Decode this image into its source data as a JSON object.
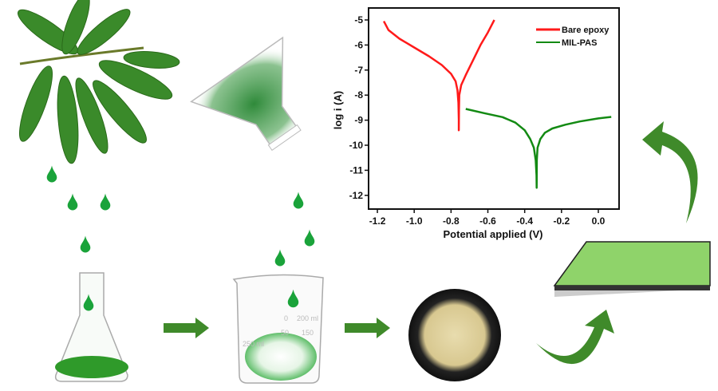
{
  "beaker_labels": {
    "zero": "0",
    "ml200": "200 ml",
    "ml250": "250 ml",
    "fifty": "50",
    "onefifty": "150"
  },
  "colors": {
    "leaf": "#3a8a2a",
    "drop": "#1aa33a",
    "arrow": "#3f8a2a",
    "coating": "#8fd36a",
    "bare": "#ff1a1a",
    "mil": "#138a13"
  },
  "chart_data": {
    "type": "line",
    "xlabel": "Potential applied (V)",
    "ylabel": "log i (A)",
    "xlim": [
      -1.25,
      0.1
    ],
    "ylim": [
      -12.5,
      -4.6
    ],
    "xticks": [
      "-1.2",
      "-1.0",
      "-0.8",
      "-0.6",
      "-0.4",
      "-0.2",
      "0.0"
    ],
    "xtick_values": [
      -1.2,
      -1.0,
      -0.8,
      -0.6,
      -0.4,
      -0.2,
      0.0
    ],
    "yticks": [
      "-5",
      "-6",
      "-7",
      "-8",
      "-9",
      "-10",
      "-11",
      "-12"
    ],
    "ytick_values": [
      -5,
      -6,
      -7,
      -8,
      -9,
      -10,
      -11,
      -12
    ],
    "legend_position": "top-right",
    "grid": false,
    "series": [
      {
        "name": "Bare epoxy",
        "color": "#ff1a1a",
        "x": [
          -1.165,
          -1.14,
          -1.08,
          -1.0,
          -0.92,
          -0.85,
          -0.8,
          -0.775,
          -0.765,
          -0.76,
          -0.758,
          -0.758,
          -0.757,
          -0.755,
          -0.745,
          -0.72,
          -0.68,
          -0.64,
          -0.6,
          -0.565
        ],
        "y": [
          -5.05,
          -5.4,
          -5.75,
          -6.1,
          -6.45,
          -6.8,
          -7.15,
          -7.45,
          -7.8,
          -8.3,
          -9.0,
          -9.4,
          -8.6,
          -8.0,
          -7.6,
          -7.2,
          -6.6,
          -6.0,
          -5.5,
          -5.0
        ]
      },
      {
        "name": "MIL-PAS",
        "color": "#138a13",
        "x": [
          -0.72,
          -0.62,
          -0.52,
          -0.45,
          -0.4,
          -0.37,
          -0.35,
          -0.34,
          -0.336,
          -0.335,
          -0.334,
          -0.33,
          -0.315,
          -0.29,
          -0.25,
          -0.18,
          -0.1,
          0.0,
          0.07
        ],
        "y": [
          -8.55,
          -8.72,
          -8.88,
          -9.1,
          -9.4,
          -9.75,
          -10.1,
          -10.6,
          -11.2,
          -11.7,
          -10.6,
          -10.1,
          -9.75,
          -9.5,
          -9.33,
          -9.18,
          -9.05,
          -8.93,
          -8.87
        ]
      }
    ]
  }
}
